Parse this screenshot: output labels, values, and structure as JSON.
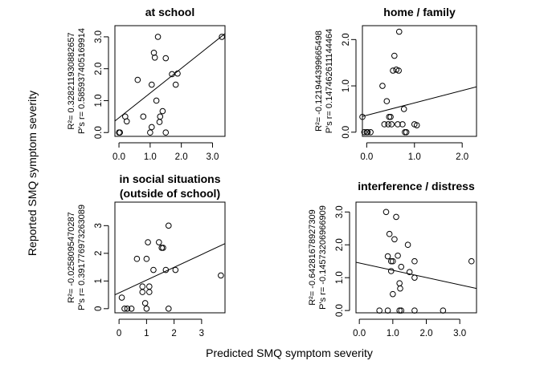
{
  "figure": {
    "xlabel": "Predicted SMQ symptom severity",
    "ylabel": "Reported SMQ symptom severity"
  },
  "chart_data": [
    {
      "type": "scatter",
      "title": "at school",
      "title_line2": "",
      "r2_label": "R²= 0.328211930882657",
      "r_label": "P's r= 0.585937405169914",
      "xlim": [
        -0.13,
        3.4
      ],
      "ylim": [
        -0.12,
        3.35
      ],
      "xticks": [
        0.0,
        1.0,
        2.0,
        3.0
      ],
      "xtick_labels": [
        "0.0",
        "1.0",
        "2.0",
        "3.0"
      ],
      "yticks": [
        0.0,
        1.0,
        2.0,
        3.0
      ],
      "ytick_labels": [
        "0.0",
        "1.0",
        "2.0",
        "3.0"
      ],
      "points": [
        [
          0.0,
          0.0
        ],
        [
          0.03,
          0.0
        ],
        [
          0.2,
          0.5
        ],
        [
          0.25,
          0.35
        ],
        [
          0.6,
          1.65
        ],
        [
          0.78,
          0.5
        ],
        [
          1.0,
          0.0
        ],
        [
          1.05,
          0.17
        ],
        [
          1.05,
          1.5
        ],
        [
          1.12,
          2.5
        ],
        [
          1.15,
          2.35
        ],
        [
          1.2,
          1.0
        ],
        [
          1.25,
          3.0
        ],
        [
          1.3,
          0.33
        ],
        [
          1.32,
          0.5
        ],
        [
          1.4,
          0.67
        ],
        [
          1.5,
          0.0
        ],
        [
          1.5,
          2.33
        ],
        [
          1.7,
          1.83
        ],
        [
          1.82,
          1.5
        ],
        [
          1.88,
          1.85
        ],
        [
          3.3,
          3.0
        ]
      ],
      "fit_line": [
        [
          -0.13,
          0.36
        ],
        [
          3.4,
          3.1
        ]
      ]
    },
    {
      "type": "scatter",
      "title": "home / family",
      "title_line2": "",
      "r2_label": "R²= -0.121944399665498",
      "r_label": "P's r= 0.147462611144464",
      "xlim": [
        -0.09,
        2.3
      ],
      "ylim": [
        -0.09,
        2.3
      ],
      "xticks": [
        0.0,
        1.0,
        2.0
      ],
      "xtick_labels": [
        "0.0",
        "1.0",
        "2.0"
      ],
      "yticks": [
        0.0,
        1.0,
        2.0
      ],
      "ytick_labels": [
        "0.0",
        "1.0",
        "2.0"
      ],
      "points": [
        [
          -0.09,
          0.33
        ],
        [
          -0.05,
          0.0
        ],
        [
          0.0,
          0.0
        ],
        [
          0.02,
          0.0
        ],
        [
          0.08,
          0.0
        ],
        [
          0.33,
          1.0
        ],
        [
          0.37,
          0.17
        ],
        [
          0.42,
          0.67
        ],
        [
          0.45,
          0.17
        ],
        [
          0.47,
          0.33
        ],
        [
          0.5,
          0.33
        ],
        [
          0.52,
          0.17
        ],
        [
          0.55,
          1.33
        ],
        [
          0.58,
          1.65
        ],
        [
          0.62,
          1.35
        ],
        [
          0.65,
          0.17
        ],
        [
          0.67,
          1.33
        ],
        [
          0.68,
          2.17
        ],
        [
          0.75,
          0.17
        ],
        [
          0.78,
          0.5
        ],
        [
          0.8,
          0.0
        ],
        [
          0.83,
          0.0
        ],
        [
          1.0,
          0.17
        ],
        [
          1.05,
          0.15
        ]
      ],
      "fit_line": [
        [
          -0.09,
          0.34
        ],
        [
          2.3,
          0.98
        ]
      ]
    },
    {
      "type": "scatter",
      "title": "in social situations",
      "title_line2": "(outside of school)",
      "r2_label": "R²= -0.0258095470287",
      "r_label": "P's r= 0.391776973263089",
      "xlim": [
        -0.15,
        3.85
      ],
      "ylim": [
        -0.15,
        3.85
      ],
      "xticks": [
        0,
        1,
        2,
        3
      ],
      "xtick_labels": [
        "0",
        "1",
        "2",
        "3"
      ],
      "yticks": [
        0,
        1,
        2,
        3
      ],
      "ytick_labels": [
        "0",
        "1",
        "2",
        "3"
      ],
      "points": [
        [
          0.1,
          0.4
        ],
        [
          0.2,
          0.0
        ],
        [
          0.3,
          0.0
        ],
        [
          0.45,
          0.0
        ],
        [
          0.65,
          1.8
        ],
        [
          0.85,
          0.6
        ],
        [
          0.85,
          0.8
        ],
        [
          0.95,
          0.2
        ],
        [
          1.0,
          0.0
        ],
        [
          1.0,
          1.8
        ],
        [
          1.05,
          2.4
        ],
        [
          1.1,
          0.6
        ],
        [
          1.1,
          0.8
        ],
        [
          1.25,
          1.4
        ],
        [
          1.45,
          2.4
        ],
        [
          1.55,
          2.2
        ],
        [
          1.6,
          2.2
        ],
        [
          1.7,
          1.4
        ],
        [
          1.8,
          0.0
        ],
        [
          1.8,
          3.0
        ],
        [
          2.05,
          1.4
        ],
        [
          3.7,
          1.2
        ]
      ],
      "fit_line": [
        [
          -0.15,
          0.5
        ],
        [
          3.85,
          2.35
        ]
      ]
    },
    {
      "type": "scatter",
      "title": "interference / distress",
      "title_line2": "",
      "r2_label": "R²= -0.64281678927309",
      "r_label": "P's r= -0.14573206966909",
      "xlim": [
        -0.1,
        3.5
      ],
      "ylim": [
        -0.07,
        3.3
      ],
      "xticks": [
        0.0,
        1.0,
        2.0,
        3.0
      ],
      "xtick_labels": [
        "0.0",
        "1.0",
        "2.0",
        "3.0"
      ],
      "yticks": [
        0.0,
        1.0,
        2.0,
        3.0
      ],
      "ytick_labels": [
        "0.0",
        "1.0",
        "2.0",
        "3.0"
      ],
      "points": [
        [
          0.6,
          0.0
        ],
        [
          0.8,
          3.0
        ],
        [
          0.85,
          0.0
        ],
        [
          0.85,
          1.65
        ],
        [
          0.9,
          2.33
        ],
        [
          0.95,
          1.5
        ],
        [
          0.95,
          1.2
        ],
        [
          1.0,
          1.5
        ],
        [
          1.0,
          0.5
        ],
        [
          1.05,
          2.17
        ],
        [
          1.1,
          2.85
        ],
        [
          1.15,
          1.67
        ],
        [
          1.2,
          0.0
        ],
        [
          1.2,
          0.83
        ],
        [
          1.22,
          0.67
        ],
        [
          1.25,
          0.0
        ],
        [
          1.25,
          1.33
        ],
        [
          1.45,
          2.0
        ],
        [
          1.5,
          1.17
        ],
        [
          1.65,
          1.5
        ],
        [
          1.65,
          1.0
        ],
        [
          1.65,
          0.0
        ],
        [
          2.5,
          0.0
        ],
        [
          3.35,
          1.5
        ]
      ],
      "fit_line": [
        [
          -0.1,
          1.47
        ],
        [
          3.5,
          0.67
        ]
      ]
    }
  ]
}
